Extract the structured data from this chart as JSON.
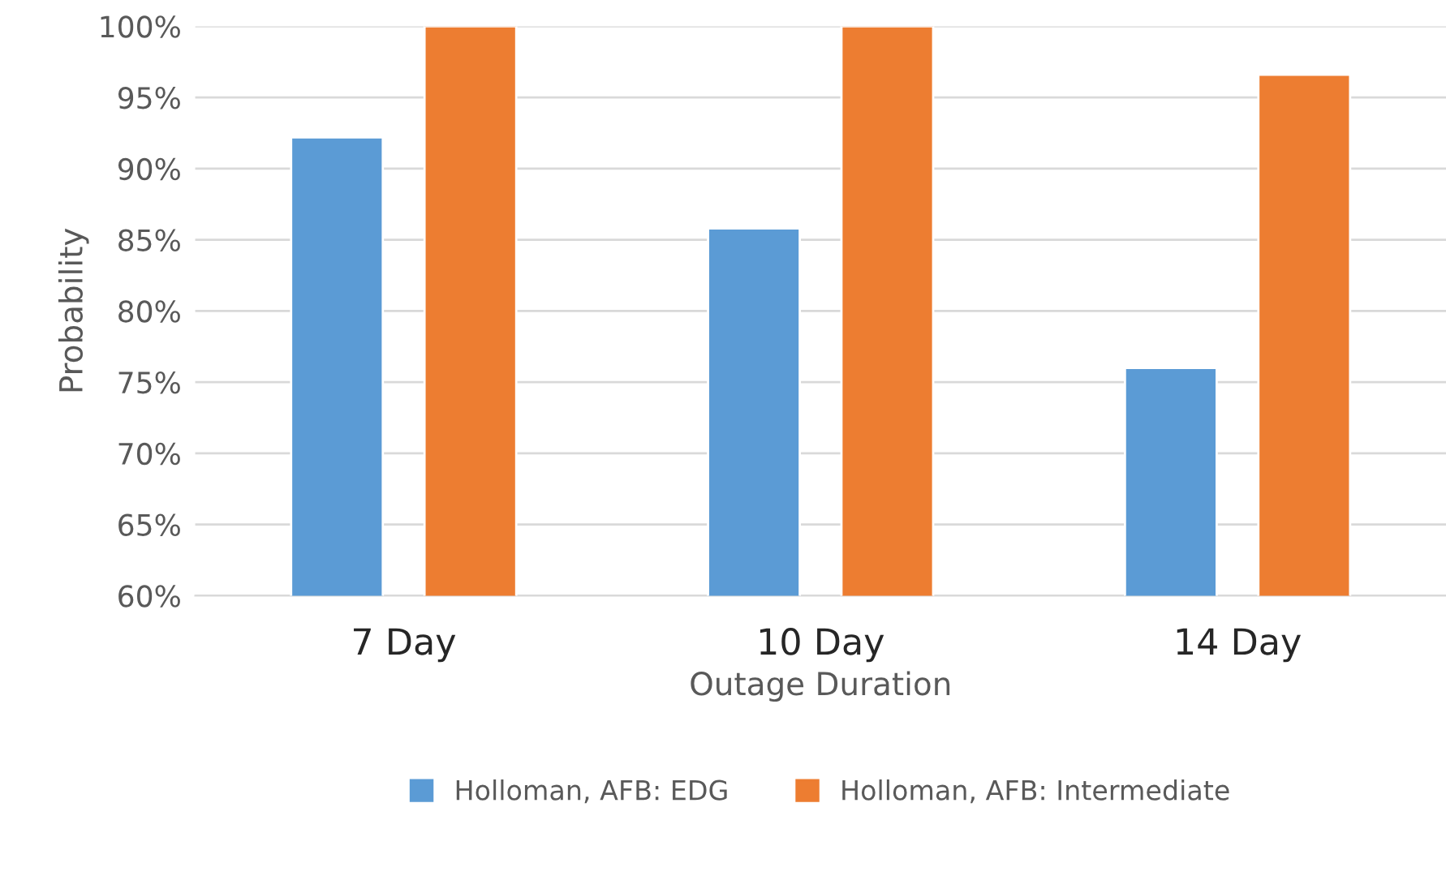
{
  "chart_data": {
    "type": "bar",
    "xlabel": "Outage Duration",
    "ylabel": "Probability",
    "categories": [
      "7 Day",
      "10 Day",
      "14 Day"
    ],
    "series": [
      {
        "name": "Holloman, AFB: EDG",
        "color": "#5b9bd5",
        "values": [
          92.2,
          85.8,
          76.0
        ]
      },
      {
        "name": "Holloman, AFB: Intermediate",
        "color": "#ed7d31",
        "values": [
          100,
          100,
          96.6
        ]
      }
    ],
    "ylim": [
      60,
      100
    ],
    "yticks": [
      {
        "value": 60,
        "label": "60%"
      },
      {
        "value": 65,
        "label": "65%"
      },
      {
        "value": 70,
        "label": "70%"
      },
      {
        "value": 75,
        "label": "75%"
      },
      {
        "value": 80,
        "label": "80%"
      },
      {
        "value": 85,
        "label": "85%"
      },
      {
        "value": 90,
        "label": "90%"
      },
      {
        "value": 95,
        "label": "95%"
      },
      {
        "value": 100,
        "label": "100%"
      }
    ],
    "grid": "y",
    "legend": "bottom"
  }
}
